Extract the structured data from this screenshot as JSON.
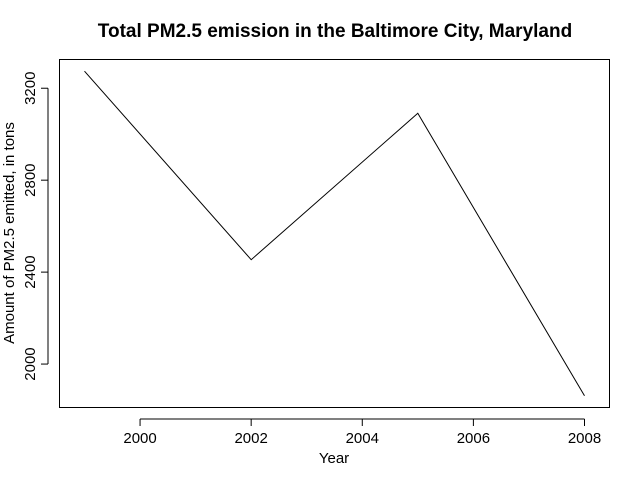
{
  "chart_data": {
    "type": "line",
    "title": "Total PM2.5 emission in the Baltimore City, Maryland",
    "xlabel": "Year",
    "ylabel": "Amount of PM2.5 emitted, in tons",
    "x": [
      1999,
      2002,
      2005,
      2008
    ],
    "series": [
      {
        "values": [
          3274,
          2454,
          3091,
          1862
        ]
      }
    ],
    "xlim": [
      1998.55,
      2008.45
    ],
    "ylim": [
      1811,
      3325
    ],
    "xticks": [
      2000,
      2002,
      2004,
      2006,
      2008
    ],
    "yticks": [
      2000,
      2400,
      2800,
      3200
    ],
    "xtick_labels": [
      "2000",
      "2002",
      "2004",
      "2006",
      "2008"
    ],
    "ytick_labels": [
      "2000",
      "2400",
      "2800",
      "3200"
    ],
    "grid": false,
    "line_color": "#000000"
  }
}
